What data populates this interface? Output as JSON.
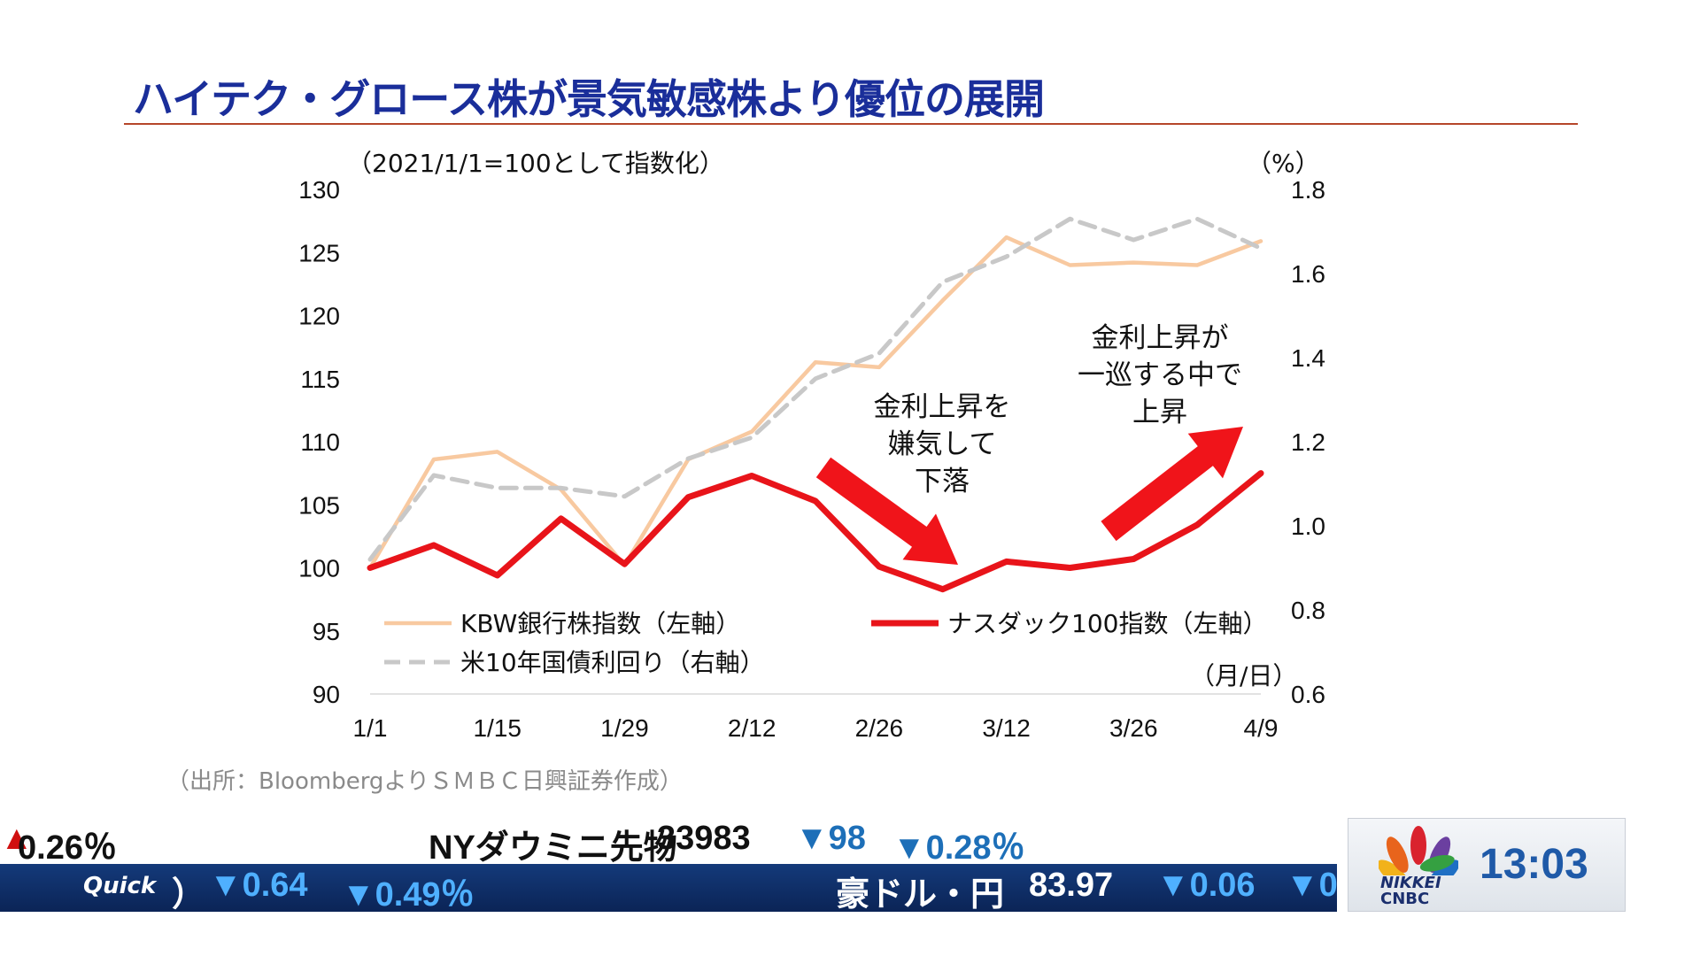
{
  "slide": {
    "title": "ハイテク・グロース株が景気敏感株より優位の展開",
    "source": "（出所：BloombergよりＳＭＢＣ日興証券作成）"
  },
  "colors": {
    "kbw": "#f8c9a0",
    "nasdaq": "#e8141a",
    "yield": "#c8c8c8",
    "title": "#1a2e9a",
    "arrow": "#f0141a"
  },
  "chart_data": {
    "type": "line",
    "left_axis_note": "（2021/1/1=100として指数化）",
    "right_axis_note": "（%）",
    "xlabel": "（月/日）",
    "x_ticks": [
      "1/1",
      "1/15",
      "1/29",
      "2/12",
      "2/26",
      "3/12",
      "3/26",
      "4/9"
    ],
    "y_left": {
      "ylim": [
        90,
        130
      ],
      "ticks": [
        130,
        125,
        120,
        115,
        110,
        105,
        100,
        95,
        90
      ]
    },
    "y_right": {
      "ylim": [
        0.6,
        1.8
      ],
      "ticks": [
        "1.8",
        "1.6",
        "1.4",
        "1.2",
        "1.0",
        "0.8",
        "0.6"
      ]
    },
    "x_weeks": [
      0,
      1,
      2,
      3,
      4,
      5,
      6,
      7,
      8,
      9,
      10,
      11,
      12,
      13,
      14
    ],
    "series": [
      {
        "name": "KBW銀行株指数（左軸）",
        "axis": "left",
        "style": "solid",
        "values": [
          100,
          108.6,
          109.2,
          106.2,
          100.2,
          108.6,
          110.8,
          116.3,
          115.9,
          121.2,
          126.2,
          124,
          124.2,
          124,
          125.9
        ]
      },
      {
        "name": "ナスダック100指数（左軸）",
        "axis": "left",
        "style": "solid-bold",
        "values": [
          100,
          101.8,
          99.4,
          103.9,
          100.3,
          105.6,
          107.3,
          105.3,
          100.1,
          98.3,
          100.5,
          100,
          100.7,
          103.4,
          107.5
        ]
      },
      {
        "name": "米10年国債利回り（右軸）",
        "axis": "right",
        "style": "dashed",
        "values": [
          0.92,
          1.12,
          1.09,
          1.09,
          1.07,
          1.16,
          1.21,
          1.35,
          1.41,
          1.58,
          1.64,
          1.73,
          1.68,
          1.73,
          1.66
        ]
      }
    ],
    "annotations": [
      {
        "lines": [
          "金利上昇を",
          "嫌気して",
          "下落"
        ]
      },
      {
        "lines": [
          "金利上昇が",
          "一巡する中で",
          "上昇"
        ]
      }
    ]
  },
  "ticker": {
    "top_left_value": "0.26％",
    "item_name": "NYダウミニ先物",
    "item_price": "33983",
    "item_change": "▼98",
    "item_pct": "▼0.28％",
    "bottom_brand": "Quick",
    "bottom_partial": "）",
    "bottom_change": "▼0.64",
    "bottom_pct": "▼0.49％",
    "fx_name": "豪ドル・円",
    "fx_price": "83.97",
    "fx_change": "▼0.06",
    "fx_tail": "▼0"
  },
  "bug": {
    "nikkei": "NIKKEI",
    "cnbc": "CNBC",
    "time": "13:03"
  }
}
